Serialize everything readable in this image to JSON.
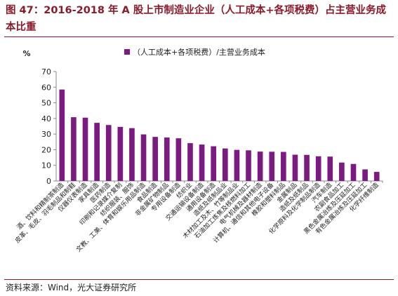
{
  "figure": {
    "title": "图 47：2016-2018 年 A 股上市制造业企业（人工成本+各项税费）占主营业务成本比重",
    "source": "资料来源：Wind，光大证券研究所"
  },
  "colors": {
    "title": "#8b1a2b",
    "bar": "#7b1a80",
    "axis": "#888888"
  },
  "chart_data": {
    "type": "bar",
    "title": "",
    "xlabel": "",
    "ylabel": "%",
    "ylim": [
      0,
      70
    ],
    "yticks": [
      0,
      10,
      20,
      30,
      40,
      50,
      60,
      70
    ],
    "grid": false,
    "legend_position": "top-center",
    "categories": [
      "酒、饮料和精制茶制造",
      "皮革、毛皮、羽毛制品和制鞋",
      "仪器仪表制造",
      "家具制造",
      "医药制造",
      "印刷和记录媒介复制",
      "纺织服装、服饰",
      "文教、工美、体育和娱乐用品制造",
      "食品制造",
      "非金属矿物制品",
      "专用设备制造",
      "纺织业",
      "交通运输设备制造",
      "通用设备制造",
      "造纸及纸制品业",
      "木材加工及木、竹等制品业",
      "石油加工炼焦及核燃料加工",
      "电气机械及器材制造",
      "计算机、通信和其他电子设备",
      "橡胶和塑料制品",
      "金属制品",
      "造纸及纸制品",
      "化学原料及化学制品制造",
      "汽车制造",
      "农副食品加工",
      "黑色金属冶炼及压延加工",
      "有色金属冶炼及压延加工",
      "化学纤维制造"
    ],
    "series": [
      {
        "name": "（人工成本+各项税费）/主营业务成本",
        "values": [
          58.5,
          40.8,
          40.5,
          37.2,
          35.8,
          34.6,
          33.8,
          29.8,
          28.2,
          27.8,
          27.3,
          24.2,
          23.3,
          22.2,
          20.8,
          19.9,
          19.6,
          18.8,
          18.7,
          18.6,
          16.8,
          16.7,
          15.8,
          15.6,
          11.8,
          10.9,
          7.4,
          5.8
        ]
      }
    ]
  }
}
